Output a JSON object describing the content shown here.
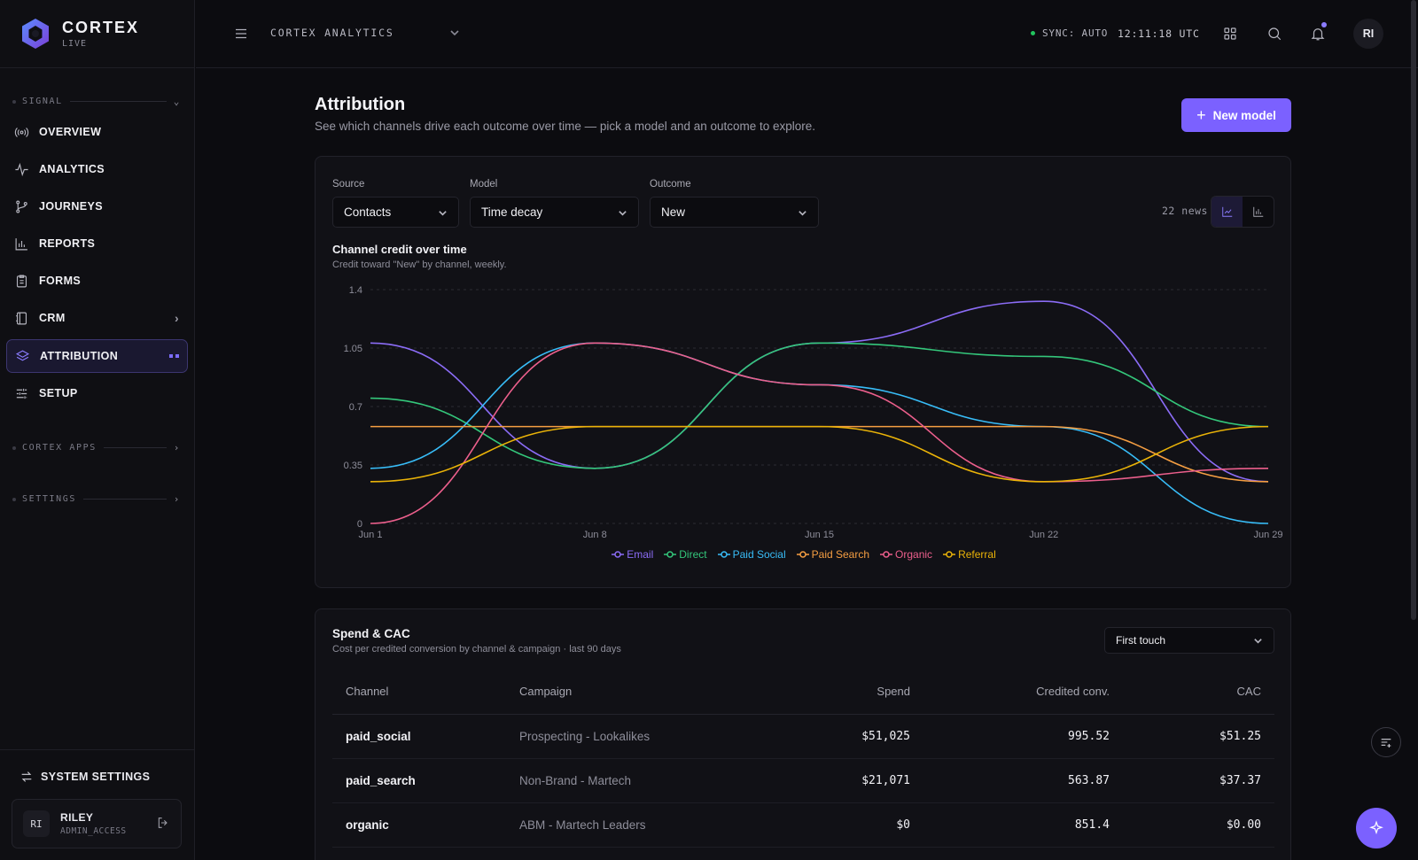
{
  "brand": {
    "name": "CORTEX",
    "status": "LIVE"
  },
  "sidebar": {
    "section_signal": "SIGNAL",
    "items": [
      {
        "label": "OVERVIEW",
        "icon": "broadcast-icon"
      },
      {
        "label": "ANALYTICS",
        "icon": "pulse-icon"
      },
      {
        "label": "JOURNEYS",
        "icon": "branch-icon"
      },
      {
        "label": "REPORTS",
        "icon": "bar-chart-icon"
      },
      {
        "label": "FORMS",
        "icon": "clipboard-icon"
      },
      {
        "label": "CRM",
        "icon": "contacts-book-icon"
      },
      {
        "label": "ATTRIBUTION",
        "icon": "layers-icon"
      },
      {
        "label": "SETUP",
        "icon": "sliders-icon"
      }
    ],
    "section_apps": "CORTEX APPS",
    "section_settings": "SETTINGS",
    "system_settings": "SYSTEM SETTINGS",
    "user": {
      "initials": "RI",
      "name": "RILEY",
      "role": "ADMIN_ACCESS"
    }
  },
  "topbar": {
    "app_name": "CORTEX ANALYTICS",
    "sync": "SYNC: AUTO",
    "clock": "12:11:18 UTC",
    "avatar": "RI"
  },
  "page": {
    "title": "Attribution",
    "subtitle": "See which channels drive each outcome over time — pick a model and an outcome to explore.",
    "new_model_label": "New model"
  },
  "filters": {
    "source_label": "Source",
    "source_value": "Contacts",
    "model_label": "Model",
    "model_value": "Time decay",
    "outcome_label": "Outcome",
    "outcome_value": "New",
    "rows_count": "22 news"
  },
  "chart_data": {
    "type": "line",
    "title": "Channel credit over time",
    "subtitle": "Credit toward \"New\" by channel, weekly.",
    "x": [
      "Jun 1",
      "Jun 8",
      "Jun 15",
      "Jun 22",
      "Jun 29"
    ],
    "yticks": [
      "1.4",
      "1.05",
      "0.7",
      "0.35",
      "0"
    ],
    "ylim": [
      0,
      1.4
    ],
    "grid": true,
    "legend_position": "bottom",
    "series": [
      {
        "name": "Email",
        "color": "#8b6cf6",
        "values": [
          1.08,
          0.33,
          1.08,
          1.33,
          0.25
        ]
      },
      {
        "name": "Direct",
        "color": "#34c77b",
        "values": [
          0.75,
          0.33,
          1.08,
          1.0,
          0.58
        ]
      },
      {
        "name": "Paid Social",
        "color": "#38bdf8",
        "values": [
          0.33,
          1.08,
          0.83,
          0.58,
          0.0
        ]
      },
      {
        "name": "Paid Search",
        "color": "#f59e42",
        "values": [
          0.58,
          0.58,
          0.58,
          0.58,
          0.25
        ]
      },
      {
        "name": "Organic",
        "color": "#ec5f8c",
        "values": [
          0.0,
          1.08,
          0.83,
          0.25,
          0.33
        ]
      },
      {
        "name": "Referral",
        "color": "#eab308",
        "values": [
          0.25,
          0.58,
          0.58,
          0.25,
          0.58
        ]
      }
    ]
  },
  "spend": {
    "title": "Spend & CAC",
    "subtitle": "Cost per credited conversion by channel & campaign · last 90 days",
    "model_value": "First touch",
    "columns": [
      "Channel",
      "Campaign",
      "Spend",
      "Credited conv.",
      "CAC"
    ],
    "rows": [
      {
        "channel": "paid_social",
        "campaign": "Prospecting - Lookalikes",
        "spend": "$51,025",
        "conv": "995.52",
        "cac": "$51.25"
      },
      {
        "channel": "paid_search",
        "campaign": "Non-Brand - Martech",
        "spend": "$21,071",
        "conv": "563.87",
        "cac": "$37.37"
      },
      {
        "channel": "organic",
        "campaign": "ABM - Martech Leaders",
        "spend": "$0",
        "conv": "851.4",
        "cac": "$0.00"
      }
    ]
  }
}
